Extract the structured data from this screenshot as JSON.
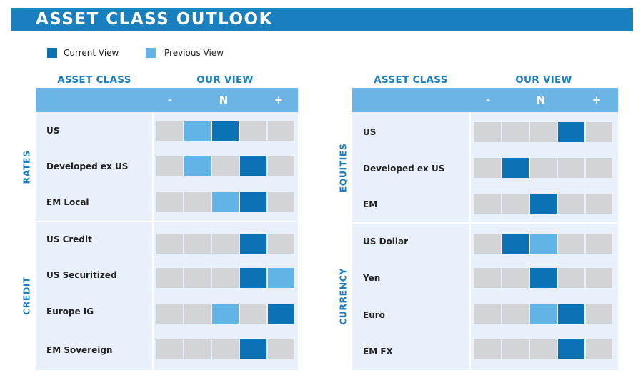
{
  "title": "ASSET CLASS OUTLOOK",
  "legend": {
    "current": "Current View",
    "previous": "Previous View"
  },
  "colors": {
    "banner": "#1a7fbf",
    "current": "#0a72b5",
    "previous": "#62b3e6",
    "neutral": "#d3d4d8",
    "header": "#6bb4e6",
    "panel": "#e8f1fb"
  },
  "scale_symbols": [
    "-",
    "N",
    "+"
  ],
  "chart_data": {
    "type": "table",
    "scale": [
      "-2",
      "-1",
      "0",
      "+1",
      "+2"
    ],
    "tables": [
      {
        "col_asset": "ASSET CLASS",
        "col_view": "OUR VIEW",
        "groups": [
          {
            "name": "RATES",
            "rows": [
              {
                "label": "US",
                "current": 0,
                "previous": -1
              },
              {
                "label": "Developed ex US",
                "current": 1,
                "previous": -1
              },
              {
                "label": "EM Local",
                "current": 1,
                "previous": 0
              }
            ]
          },
          {
            "name": "CREDIT",
            "rows": [
              {
                "label": "US Credit",
                "current": 1,
                "previous": null
              },
              {
                "label": "US Securitized",
                "current": 1,
                "previous": 2
              },
              {
                "label": "Europe IG",
                "current": 2,
                "previous": 0
              },
              {
                "label": "EM Sovereign",
                "current": 1,
                "previous": null
              }
            ]
          }
        ]
      },
      {
        "col_asset": "ASSET CLASS",
        "col_view": "OUR VIEW",
        "groups": [
          {
            "name": "EQUITIES",
            "rows": [
              {
                "label": "US",
                "current": 1,
                "previous": null
              },
              {
                "label": "Developed ex US",
                "current": -1,
                "previous": null
              },
              {
                "label": "EM",
                "current": 0,
                "previous": null
              }
            ]
          },
          {
            "name": "CURRENCY",
            "rows": [
              {
                "label": "US Dollar",
                "current": -1,
                "previous": 0
              },
              {
                "label": "Yen",
                "current": 0,
                "previous": null
              },
              {
                "label": "Euro",
                "current": 1,
                "previous": 0
              },
              {
                "label": "EM FX",
                "current": 1,
                "previous": null
              }
            ]
          }
        ]
      }
    ]
  }
}
